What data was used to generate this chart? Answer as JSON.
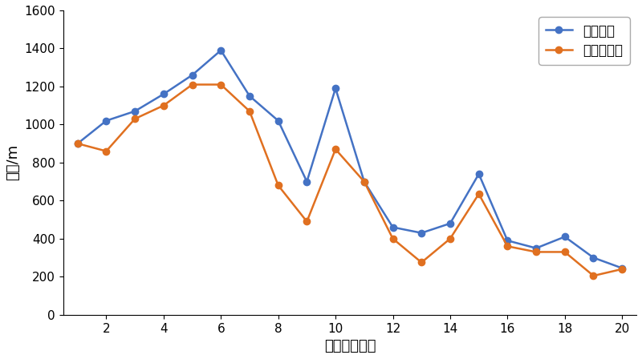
{
  "x": [
    1,
    2,
    3,
    4,
    5,
    6,
    7,
    8,
    9,
    10,
    11,
    12,
    13,
    14,
    15,
    16,
    17,
    18,
    19,
    20
  ],
  "y_original": [
    900,
    1020,
    1070,
    1160,
    1260,
    1390,
    1150,
    1020,
    700,
    1190,
    700,
    460,
    430,
    480,
    740,
    390,
    350,
    410,
    300,
    245
  ],
  "y_optimized": [
    900,
    860,
    1030,
    1100,
    1210,
    1210,
    1070,
    680,
    490,
    870,
    700,
    400,
    275,
    400,
    635,
    360,
    330,
    330,
    205,
    240
  ],
  "color_original": "#4472C4",
  "color_optimized": "#E07020",
  "marker": "o",
  "markersize": 6,
  "linewidth": 1.8,
  "xlabel": "避灾路线编号",
  "ylabel": "长度/m",
  "legend_original": "原始距离",
  "legend_optimized": "优化后距离",
  "xlim": [
    0.5,
    20.5
  ],
  "ylim": [
    0,
    1600
  ],
  "yticks": [
    0,
    200,
    400,
    600,
    800,
    1000,
    1200,
    1400,
    1600
  ],
  "xticks": [
    2,
    4,
    6,
    8,
    10,
    12,
    14,
    16,
    18,
    20
  ],
  "background_color": "#ffffff"
}
